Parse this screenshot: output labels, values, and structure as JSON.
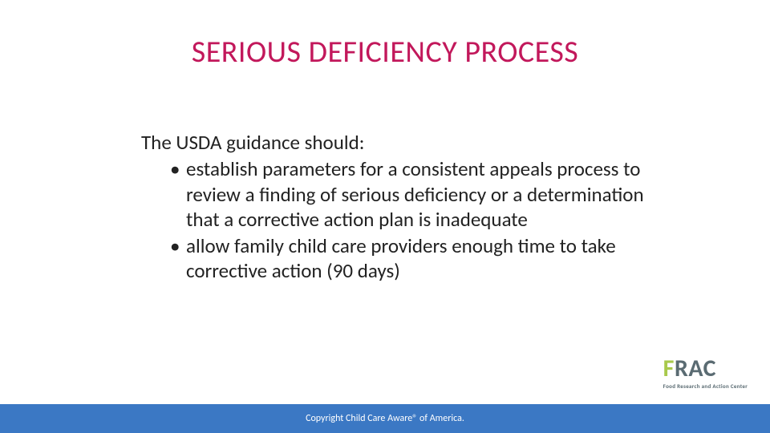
{
  "colors": {
    "title": "#c2185b",
    "body_text": "#222222",
    "footer_bg": "#3b78c4",
    "footer_text": "#ffffff",
    "logo_f": "#a8c94b",
    "logo_rac": "#5a6b72",
    "logo_sub": "#5a6b72",
    "background": "#ffffff"
  },
  "title": "SERIOUS DEFICIENCY PROCESS",
  "lead": "The USDA guidance should:",
  "bullets": [
    "establish parameters for a consistent appeals process to review a finding of serious deficiency or a determination that a corrective action plan is inadequate",
    "allow family child care providers enough time to take corrective action (90 days)"
  ],
  "logo": {
    "f": "F",
    "rac": "RAC",
    "sub": "Food Research and Action Center"
  },
  "footer": "Copyright Child Care Aware® of America."
}
